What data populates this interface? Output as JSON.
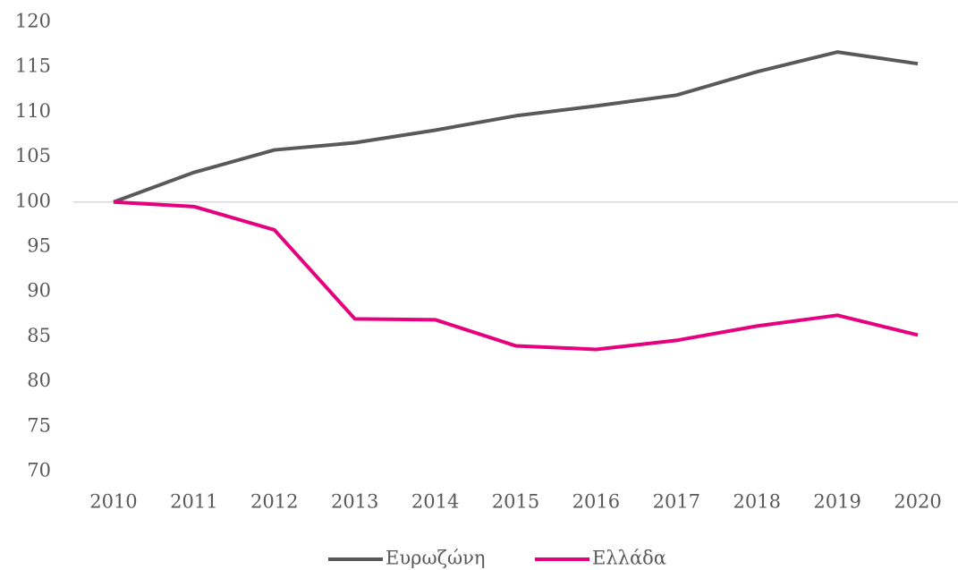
{
  "chart_data": {
    "type": "line",
    "categories": [
      "2010",
      "2011",
      "2012",
      "2013",
      "2014",
      "2015",
      "2016",
      "2017",
      "2018",
      "2019",
      "2020"
    ],
    "series": [
      {
        "name": "Ευρωζώνη",
        "color": "#595959",
        "values": [
          100,
          103.3,
          105.8,
          106.6,
          108.0,
          109.6,
          110.7,
          111.9,
          114.5,
          116.7,
          115.4
        ]
      },
      {
        "name": "Ελλάδα",
        "color": "#e6007e",
        "values": [
          100,
          99.5,
          96.9,
          87.0,
          86.9,
          84.0,
          83.6,
          84.6,
          86.2,
          87.4,
          85.2
        ]
      }
    ],
    "ylim": [
      70,
      120
    ],
    "yticks": [
      70,
      75,
      80,
      85,
      90,
      95,
      100,
      105,
      110,
      115,
      120
    ],
    "x_axis_crosses": 100,
    "grid": false,
    "legend": "bottom"
  }
}
